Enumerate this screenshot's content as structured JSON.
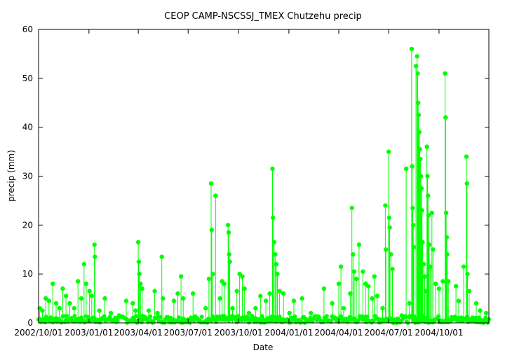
{
  "chart_data": {
    "type": "line",
    "title": "CEOP CAMP-NSCSSJ_TMEX Chutzehu  precip",
    "xlabel": "Date",
    "ylabel": "precip (mm)",
    "x_range": [
      "2002-10-01",
      "2004-12-31"
    ],
    "ylim": [
      0,
      60
    ],
    "y_ticks": [
      0,
      10,
      20,
      30,
      40,
      50,
      60
    ],
    "x_ticks": [
      {
        "date": "2002-10-01",
        "label": "2002/10/01"
      },
      {
        "date": "2003-01-01",
        "label": "2003/01/01"
      },
      {
        "date": "2003-04-01",
        "label": "2003/04/01"
      },
      {
        "date": "2003-07-01",
        "label": "2003/07/01"
      },
      {
        "date": "2003-10-01",
        "label": "2003/10/01"
      },
      {
        "date": "2004-01-01",
        "label": "2004/01/01"
      },
      {
        "date": "2004-04-01",
        "label": "2004/04/01"
      },
      {
        "date": "2004-07-01",
        "label": "2004/07/01"
      },
      {
        "date": "2004-10-01",
        "label": "2004/10/01"
      }
    ],
    "grid": false,
    "colors": {
      "series": "#00ff00",
      "axis": "#000000"
    },
    "series": [
      {
        "points": [
          [
            "2002-10-03",
            3
          ],
          [
            "2002-10-08",
            2.5
          ],
          [
            "2002-10-14",
            5
          ],
          [
            "2002-10-20",
            4.5
          ],
          [
            "2002-10-27",
            8
          ],
          [
            "2002-11-02",
            4
          ],
          [
            "2002-11-08",
            3
          ],
          [
            "2002-11-14",
            7
          ],
          [
            "2002-11-20",
            5.5
          ],
          [
            "2002-11-27",
            4
          ],
          [
            "2002-12-05",
            3
          ],
          [
            "2002-12-12",
            8.5
          ],
          [
            "2002-12-18",
            5
          ],
          [
            "2002-12-23",
            12
          ],
          [
            "2002-12-27",
            8
          ],
          [
            "2003-01-02",
            6.5
          ],
          [
            "2003-01-06",
            5.5
          ],
          [
            "2003-01-11",
            16
          ],
          [
            "2003-01-12",
            13.5
          ],
          [
            "2003-01-20",
            2.5
          ],
          [
            "2003-01-30",
            5
          ],
          [
            "2003-02-10",
            2
          ],
          [
            "2003-02-25",
            1.5
          ],
          [
            "2003-03-10",
            4.5
          ],
          [
            "2003-03-22",
            4
          ],
          [
            "2003-03-27",
            2.5
          ],
          [
            "2003-04-01",
            16.5
          ],
          [
            "2003-04-02",
            12.5
          ],
          [
            "2003-04-03",
            10
          ],
          [
            "2003-04-05",
            8
          ],
          [
            "2003-04-08",
            7
          ],
          [
            "2003-04-20",
            2.5
          ],
          [
            "2003-05-01",
            6.5
          ],
          [
            "2003-05-06",
            2
          ],
          [
            "2003-05-14",
            13.5
          ],
          [
            "2003-05-16",
            5
          ],
          [
            "2003-05-30",
            1
          ],
          [
            "2003-06-05",
            4.5
          ],
          [
            "2003-06-12",
            6
          ],
          [
            "2003-06-18",
            9.5
          ],
          [
            "2003-06-22",
            5
          ],
          [
            "2003-07-10",
            6
          ],
          [
            "2003-08-02",
            3
          ],
          [
            "2003-08-08",
            9
          ],
          [
            "2003-08-12",
            28.5
          ],
          [
            "2003-08-13",
            19
          ],
          [
            "2003-08-15",
            10
          ],
          [
            "2003-08-20",
            26
          ],
          [
            "2003-08-28",
            5
          ],
          [
            "2003-09-01",
            8.5
          ],
          [
            "2003-09-05",
            8
          ],
          [
            "2003-09-12",
            20
          ],
          [
            "2003-09-13",
            18.5
          ],
          [
            "2003-09-14",
            14
          ],
          [
            "2003-09-15",
            12.5
          ],
          [
            "2003-09-20",
            3
          ],
          [
            "2003-09-28",
            6.5
          ],
          [
            "2003-10-03",
            10
          ],
          [
            "2003-10-08",
            9.5
          ],
          [
            "2003-10-12",
            7
          ],
          [
            "2003-10-20",
            2
          ],
          [
            "2003-11-01",
            3
          ],
          [
            "2003-11-10",
            5.5
          ],
          [
            "2003-11-20",
            4.5
          ],
          [
            "2003-11-27",
            6
          ],
          [
            "2003-12-02",
            31.5
          ],
          [
            "2003-12-03",
            21.5
          ],
          [
            "2003-12-05",
            16.5
          ],
          [
            "2003-12-07",
            14
          ],
          [
            "2003-12-09",
            12
          ],
          [
            "2003-12-11",
            10
          ],
          [
            "2003-12-15",
            6.5
          ],
          [
            "2003-12-22",
            6
          ],
          [
            "2004-01-02",
            2
          ],
          [
            "2004-01-10",
            4.5
          ],
          [
            "2004-01-25",
            5
          ],
          [
            "2004-02-10",
            2
          ],
          [
            "2004-03-05",
            7
          ],
          [
            "2004-03-20",
            4
          ],
          [
            "2004-04-01",
            8
          ],
          [
            "2004-04-05",
            11.5
          ],
          [
            "2004-04-10",
            3
          ],
          [
            "2004-04-22",
            6
          ],
          [
            "2004-04-25",
            23.5
          ],
          [
            "2004-04-27",
            14
          ],
          [
            "2004-04-29",
            10.5
          ],
          [
            "2004-05-03",
            9
          ],
          [
            "2004-05-08",
            16
          ],
          [
            "2004-05-15",
            10.5
          ],
          [
            "2004-05-20",
            8
          ],
          [
            "2004-05-25",
            7.5
          ],
          [
            "2004-06-01",
            5
          ],
          [
            "2004-06-05",
            9.5
          ],
          [
            "2004-06-10",
            5.5
          ],
          [
            "2004-06-20",
            3
          ],
          [
            "2004-06-25",
            24
          ],
          [
            "2004-06-26",
            15
          ],
          [
            "2004-07-01",
            35
          ],
          [
            "2004-07-02",
            21.5
          ],
          [
            "2004-07-03",
            19.5
          ],
          [
            "2004-07-05",
            14
          ],
          [
            "2004-07-08",
            11
          ],
          [
            "2004-07-25",
            1.5
          ],
          [
            "2004-08-02",
            31.5
          ],
          [
            "2004-08-08",
            4
          ],
          [
            "2004-08-12",
            56
          ],
          [
            "2004-08-13",
            32
          ],
          [
            "2004-08-14",
            23.5
          ],
          [
            "2004-08-15",
            20
          ],
          [
            "2004-08-16",
            15.5
          ],
          [
            "2004-08-20",
            52.5
          ],
          [
            "2004-08-22",
            54.5
          ],
          [
            "2004-08-23",
            51
          ],
          [
            "2004-08-24",
            45
          ],
          [
            "2004-08-25",
            42.5
          ],
          [
            "2004-08-26",
            39
          ],
          [
            "2004-08-27",
            35.5
          ],
          [
            "2004-08-28",
            33.5
          ],
          [
            "2004-08-29",
            30
          ],
          [
            "2004-08-30",
            27.5
          ],
          [
            "2004-08-31",
            23
          ],
          [
            "2004-09-01",
            16.5
          ],
          [
            "2004-09-03",
            12
          ],
          [
            "2004-09-05",
            9.5
          ],
          [
            "2004-09-07",
            6.5
          ],
          [
            "2004-09-09",
            36
          ],
          [
            "2004-09-10",
            30
          ],
          [
            "2004-09-11",
            26
          ],
          [
            "2004-09-12",
            22
          ],
          [
            "2004-09-13",
            16
          ],
          [
            "2004-09-15",
            11.5
          ],
          [
            "2004-09-18",
            22.5
          ],
          [
            "2004-09-20",
            15
          ],
          [
            "2004-09-25",
            8
          ],
          [
            "2004-10-01",
            7
          ],
          [
            "2004-10-08",
            8.5
          ],
          [
            "2004-10-12",
            51
          ],
          [
            "2004-10-13",
            42
          ],
          [
            "2004-10-14",
            22.5
          ],
          [
            "2004-10-15",
            17.5
          ],
          [
            "2004-10-16",
            14
          ],
          [
            "2004-10-18",
            8.5
          ],
          [
            "2004-11-01",
            7.5
          ],
          [
            "2004-11-06",
            4.5
          ],
          [
            "2004-11-15",
            11.5
          ],
          [
            "2004-11-20",
            34
          ],
          [
            "2004-11-21",
            28.5
          ],
          [
            "2004-11-22",
            10
          ],
          [
            "2004-11-25",
            6.5
          ],
          [
            "2004-12-08",
            4
          ],
          [
            "2004-12-15",
            2.5
          ],
          [
            "2004-12-26",
            2
          ]
        ]
      }
    ]
  }
}
